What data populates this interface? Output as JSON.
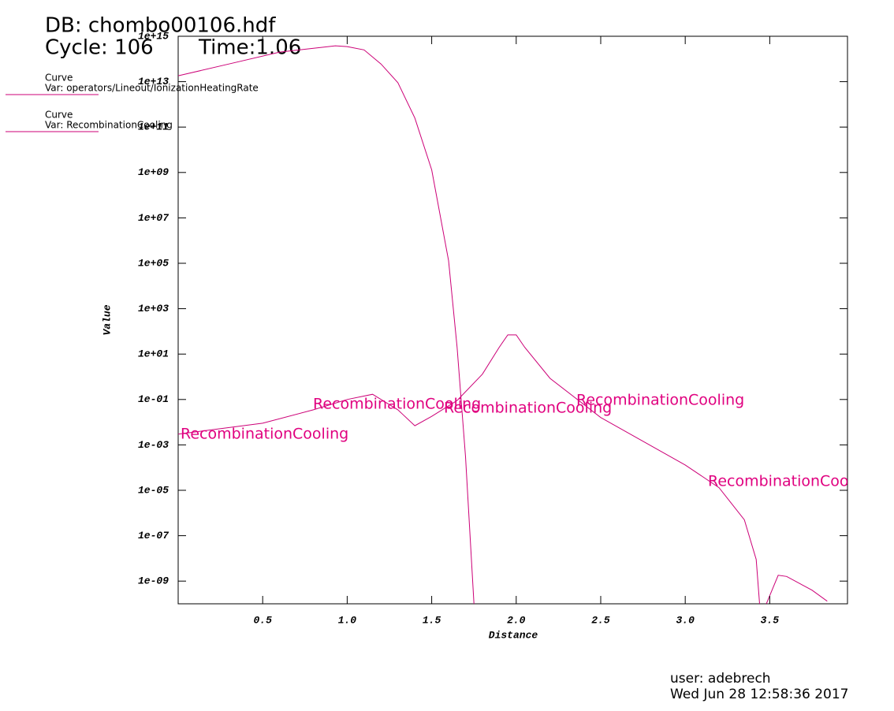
{
  "chart_data": {
    "type": "line",
    "title": "DB: chombo00106.hdf",
    "cycle": "Cycle: 106",
    "time": "Time:1.06",
    "xlabel": "Distance",
    "ylabel": "Value",
    "legend_heading": "Curve",
    "user": "user: adebrech",
    "date": "Wed Jun 28 12:58:36 2017",
    "curve_labels": [
      "RecombinationCooling",
      "RecombinationCooling",
      "RecombinationCooling",
      "RecombinationCooling",
      "RecombinationCooling"
    ],
    "ylog": true,
    "xlim": [
      0,
      3.96
    ],
    "ylim": [
      1e-10,
      1000000000000000.0
    ],
    "xticks": [
      0.5,
      {
        "value": 1,
        "label": "1.0"
      },
      1.5,
      {
        "value": 2,
        "label": "2.0"
      },
      2.5,
      {
        "value": 3,
        "label": "3.0"
      },
      3.5
    ],
    "yticks": [
      {
        "value": 1000000000000000.0,
        "label": "1e+15"
      },
      {
        "value": 10000000000000.0,
        "label": "1e+13"
      },
      {
        "value": 100000000000.0,
        "label": "1e+11"
      },
      {
        "value": 1000000000.0,
        "label": "1e+09"
      },
      {
        "value": 10000000.0,
        "label": "1e+07"
      },
      {
        "value": 100000.0,
        "label": "1e+05"
      },
      {
        "value": 1000.0,
        "label": "1e+03"
      },
      {
        "value": 10,
        "label": "1e+01"
      },
      {
        "value": 0.1,
        "label": "1e-01"
      },
      {
        "value": 0.001,
        "label": "1e-03"
      },
      {
        "value": 1e-05,
        "label": "1e-05"
      },
      {
        "value": 1e-07,
        "label": "1e-07"
      },
      {
        "value": 1e-09,
        "label": "1e-09"
      }
    ],
    "series": [
      {
        "name": "Var: operators/Lineout/IonizationHeatingRate",
        "color": "#cc0077",
        "x": [
          0,
          0.3,
          0.6,
          0.93,
          1.0,
          1.1,
          1.2,
          1.3,
          1.4,
          1.5,
          1.6,
          1.65,
          1.7,
          1.75
        ],
        "values": [
          18000000000000.0,
          60000000000000.0,
          200000000000000.0,
          380000000000000.0,
          350000000000000.0,
          250000000000000.0,
          60000000000000.0,
          9000000000000.0,
          250000000000.0,
          1300000000.0,
          130000.0,
          20,
          0.0003,
          1e-10
        ]
      },
      {
        "name": "Var: RecombinationCooling",
        "color": "#cc0077",
        "x": [
          0,
          0.5,
          0.8,
          1.0,
          1.15,
          1.3,
          1.4,
          1.5,
          1.65,
          1.8,
          1.9,
          1.95,
          2.0,
          2.05,
          2.2,
          2.5,
          3.0,
          3.2,
          3.35,
          3.42,
          3.44,
          3.46,
          3.48,
          3.55,
          3.6,
          3.75,
          3.84
        ],
        "values": [
          0.003,
          0.009,
          0.035,
          0.1,
          0.17,
          0.035,
          0.007,
          0.018,
          0.09,
          1.3,
          20,
          70,
          70,
          20,
          0.85,
          0.016,
          0.00013,
          1.3e-05,
          5e-07,
          9e-09,
          1e-10,
          null,
          1e-10,
          1.8e-09,
          1.6e-09,
          4e-10,
          1.3e-10
        ]
      }
    ]
  }
}
